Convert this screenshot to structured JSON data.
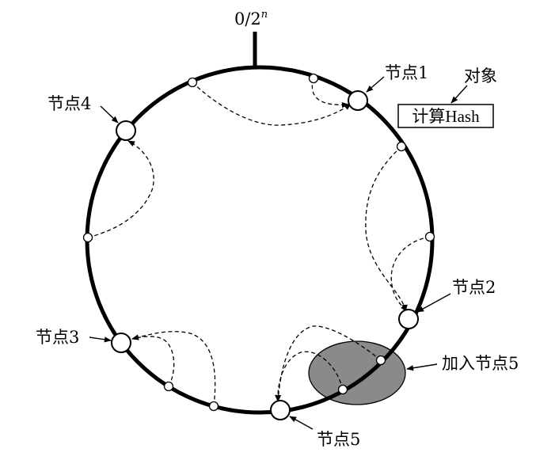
{
  "ring_label": "0/2",
  "ring_label_exp": "n",
  "nodes": [
    {
      "id": "node1",
      "label": "节点1"
    },
    {
      "id": "node2",
      "label": "节点2"
    },
    {
      "id": "node3",
      "label": "节点3"
    },
    {
      "id": "node4",
      "label": "节点4"
    },
    {
      "id": "node5",
      "label": "节点5"
    }
  ],
  "object_label": "对象",
  "hash_box_label": "计算Hash",
  "add_node_label": "加入节点5",
  "colors": {
    "ring": "#000000",
    "highlight_fill": "#8a8a8a",
    "background": "#ffffff"
  }
}
